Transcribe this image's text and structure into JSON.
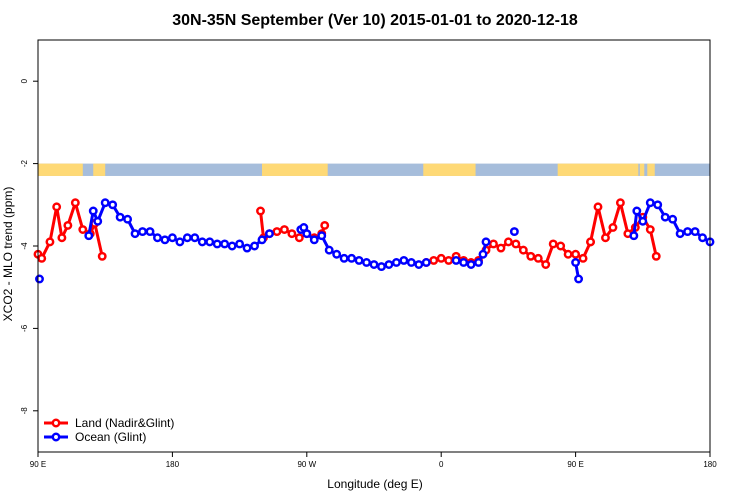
{
  "chart_data": {
    "type": "line",
    "title": "30N-35N September (Ver 10)   2015-01-01 to 2020-12-18",
    "xlabel": "Longitude (deg E)",
    "ylabel": "XCO2 - MLO trend (ppm)",
    "xlim": [
      90,
      540
    ],
    "ylim": [
      -9,
      1
    ],
    "x_ticks": [
      {
        "value": 90,
        "label": "90 E"
      },
      {
        "value": 180,
        "label": "180"
      },
      {
        "value": 270,
        "label": "90 W"
      },
      {
        "value": 360,
        "label": "0"
      },
      {
        "value": 450,
        "label": "90 E"
      },
      {
        "value": 540,
        "label": "180"
      }
    ],
    "y_ticks": [
      {
        "value": 0,
        "label": "0"
      },
      {
        "value": -2,
        "label": "-2"
      },
      {
        "value": -4,
        "label": "-4"
      },
      {
        "value": -6,
        "label": "-6"
      },
      {
        "value": -8,
        "label": "-8"
      }
    ],
    "grid": false,
    "legend_position": "bottom-left",
    "land_ocean_strip": {
      "y_range": [
        -2.3,
        -2.0
      ],
      "ocean_color": "#a6bddb",
      "land_color": "#fed976",
      "land_segments": [
        [
          90,
          120
        ],
        [
          127,
          135
        ],
        [
          240,
          284
        ],
        [
          348,
          383
        ],
        [
          438,
          492
        ],
        [
          493,
          496
        ],
        [
          498,
          503
        ]
      ]
    },
    "series": [
      {
        "name": "Land (Nadir&Glint)",
        "color": "#ff0000",
        "segments": [
          {
            "x": [
              90,
              92.5,
              98,
              102.5,
              106,
              110,
              115,
              120,
              125,
              128,
              133
            ],
            "y": [
              -4.2,
              -4.3,
              -3.9,
              -3.05,
              -3.8,
              -3.5,
              -2.95,
              -3.6,
              -3.7,
              -3.45,
              -4.25
            ]
          },
          {
            "x": [
              239,
              241,
              245,
              250,
              255,
              260,
              265,
              270,
              275,
              280,
              282
            ],
            "y": [
              -3.15,
              -3.8,
              -3.7,
              -3.65,
              -3.6,
              -3.7,
              -3.8,
              -3.7,
              -3.8,
              -3.7,
              -3.5
            ]
          },
          {
            "x": [
              350,
              355,
              360,
              365,
              370,
              375,
              380,
              385,
              390,
              395,
              400,
              405,
              410,
              415,
              420,
              425,
              430,
              435,
              440,
              445,
              450,
              455,
              460
            ],
            "y": [
              -4.4,
              -4.35,
              -4.3,
              -4.35,
              -4.25,
              -4.35,
              -4.4,
              -4.35,
              -4.1,
              -3.95,
              -4.05,
              -3.9,
              -3.95,
              -4.1,
              -4.25,
              -4.3,
              -4.45,
              -3.95,
              -4.0,
              -4.2,
              -4.2,
              -4.3,
              -3.9
            ]
          },
          {
            "x": [
              460,
              465,
              470,
              475,
              480,
              485,
              490,
              495,
              500,
              504
            ],
            "y": [
              -3.9,
              -3.05,
              -3.8,
              -3.55,
              -2.95,
              -3.7,
              -3.55,
              -3.3,
              -3.6,
              -4.25
            ]
          }
        ]
      },
      {
        "name": "Ocean (Glint)",
        "color": "#0000ff",
        "segments": [
          {
            "x": [
              91
            ],
            "y": [
              -4.8
            ]
          },
          {
            "x": [
              124,
              127,
              130,
              135,
              140,
              145,
              150,
              155,
              160,
              165,
              170,
              175,
              180,
              185,
              190,
              195,
              200,
              205,
              210,
              215,
              220,
              225,
              230,
              235,
              240,
              245
            ],
            "y": [
              -3.75,
              -3.15,
              -3.4,
              -2.95,
              -3.0,
              -3.3,
              -3.35,
              -3.7,
              -3.65,
              -3.65,
              -3.8,
              -3.85,
              -3.8,
              -3.9,
              -3.8,
              -3.8,
              -3.9,
              -3.9,
              -3.95,
              -3.95,
              -4.0,
              -3.95,
              -4.05,
              -4.0,
              -3.85,
              -3.7
            ]
          },
          {
            "x": [
              266,
              268,
              270,
              275,
              280,
              285,
              290,
              295,
              300,
              305,
              310,
              315,
              320,
              325,
              330,
              335,
              340,
              345,
              350
            ],
            "y": [
              -3.6,
              -3.55,
              -3.7,
              -3.85,
              -3.75,
              -4.1,
              -4.2,
              -4.3,
              -4.3,
              -4.35,
              -4.4,
              -4.45,
              -4.5,
              -4.45,
              -4.4,
              -4.35,
              -4.4,
              -4.45,
              -4.4
            ]
          },
          {
            "x": [
              370,
              375,
              380,
              385,
              388,
              390
            ],
            "y": [
              -4.35,
              -4.4,
              -4.45,
              -4.4,
              -4.2,
              -3.9
            ]
          },
          {
            "x": [
              409
            ],
            "y": [
              -3.65
            ]
          },
          {
            "x": [
              450,
              452
            ],
            "y": [
              -4.4,
              -4.8
            ]
          },
          {
            "x": [
              489,
              491,
              495,
              500,
              505,
              510,
              515,
              520,
              525,
              530,
              535,
              540
            ],
            "y": [
              -3.75,
              -3.15,
              -3.4,
              -2.95,
              -3.0,
              -3.3,
              -3.35,
              -3.7,
              -3.65,
              -3.65,
              -3.8,
              -3.9
            ]
          }
        ]
      }
    ]
  }
}
